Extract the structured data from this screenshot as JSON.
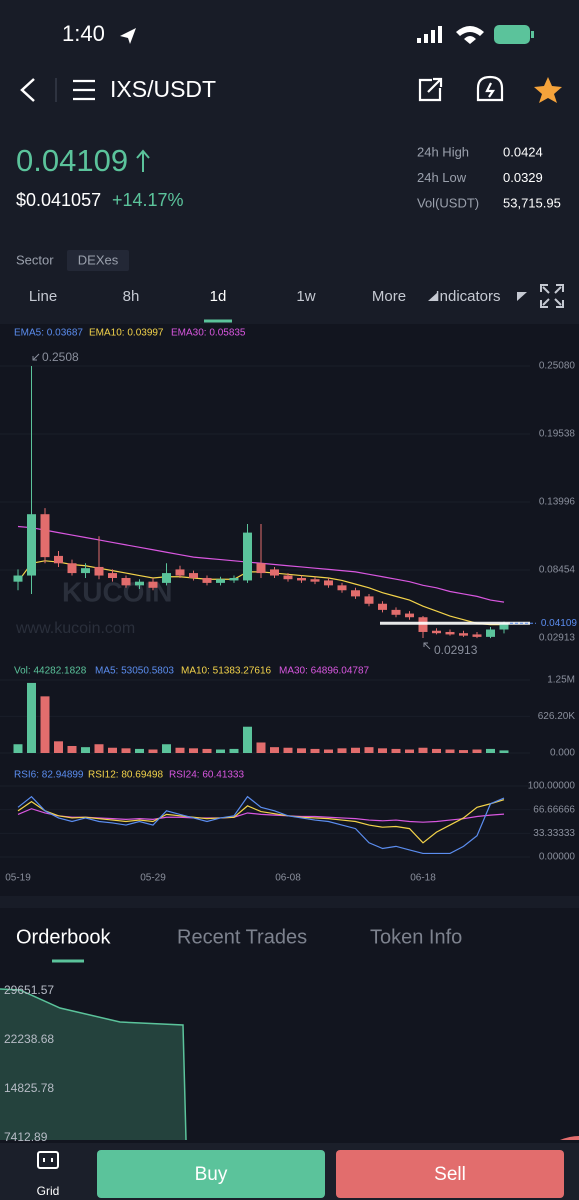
{
  "status": {
    "time": "1:40"
  },
  "header": {
    "pair": "IXS/USDT"
  },
  "ticker": {
    "price": "0.04109",
    "usd": "$0.041057",
    "change": "+14.17%",
    "stats": [
      {
        "label": "24h High",
        "value": "0.0424"
      },
      {
        "label": "24h Low",
        "value": "0.0329"
      },
      {
        "label": "Vol(USDT)",
        "value": "53,715.95"
      }
    ]
  },
  "sector": {
    "label": "Sector",
    "value": "DEXes"
  },
  "intervals": [
    "Line",
    "8h",
    "1d",
    "1w",
    "More"
  ],
  "active_interval": 2,
  "indicators": "Indicators",
  "chart_data": {
    "type": "candlestick",
    "legend": [
      "EMA5: 0.03687",
      "EMA10: 0.03997",
      "EMA30: 0.05835"
    ],
    "watermark": [
      "KUCOIN",
      "www.kucoin.com"
    ],
    "categories": [
      "05-19",
      null,
      null,
      null,
      null,
      null,
      null,
      null,
      null,
      null,
      "05-29",
      null,
      null,
      null,
      null,
      null,
      null,
      null,
      null,
      null,
      "06-08",
      null,
      null,
      null,
      null,
      null,
      null,
      null,
      null,
      null,
      "06-18",
      null,
      null,
      null,
      null,
      null,
      null
    ],
    "open": [
      0.075,
      0.08,
      0.13,
      0.096,
      0.09,
      0.082,
      0.087,
      0.082,
      0.078,
      0.072,
      0.075,
      0.074,
      0.085,
      0.082,
      0.078,
      0.074,
      0.076,
      0.076,
      0.09,
      0.085,
      0.08,
      0.078,
      0.077,
      0.076,
      0.072,
      0.068,
      0.063,
      0.057,
      0.052,
      0.049,
      0.046,
      0.035,
      0.034,
      0.033,
      0.032,
      0.03,
      0.036
    ],
    "high": [
      0.085,
      0.2508,
      0.135,
      0.1,
      0.093,
      0.09,
      0.112,
      0.085,
      0.08,
      0.077,
      0.078,
      0.09,
      0.088,
      0.084,
      0.08,
      0.079,
      0.08,
      0.122,
      0.122,
      0.087,
      0.082,
      0.08,
      0.079,
      0.078,
      0.074,
      0.07,
      0.065,
      0.059,
      0.054,
      0.051,
      0.047,
      0.037,
      0.036,
      0.035,
      0.034,
      0.038,
      0.0424
    ],
    "low": [
      0.068,
      0.065,
      0.09,
      0.087,
      0.08,
      0.078,
      0.077,
      0.075,
      0.07,
      0.069,
      0.068,
      0.072,
      0.078,
      0.076,
      0.072,
      0.072,
      0.074,
      0.074,
      0.078,
      0.078,
      0.075,
      0.074,
      0.073,
      0.07,
      0.066,
      0.061,
      0.055,
      0.05,
      0.046,
      0.044,
      0.02913,
      0.032,
      0.031,
      0.03,
      0.029,
      0.029,
      0.0329
    ],
    "close": [
      0.08,
      0.13,
      0.095,
      0.09,
      0.082,
      0.086,
      0.08,
      0.078,
      0.072,
      0.075,
      0.07,
      0.082,
      0.08,
      0.078,
      0.074,
      0.077,
      0.078,
      0.115,
      0.082,
      0.08,
      0.077,
      0.076,
      0.075,
      0.072,
      0.068,
      0.063,
      0.057,
      0.052,
      0.048,
      0.046,
      0.034,
      0.033,
      0.032,
      0.031,
      0.03,
      0.036,
      0.04109
    ],
    "ema10": [
      0.075,
      0.09,
      0.092,
      0.091,
      0.089,
      0.088,
      0.086,
      0.084,
      0.082,
      0.08,
      0.078,
      0.079,
      0.079,
      0.078,
      0.077,
      0.077,
      0.077,
      0.083,
      0.083,
      0.082,
      0.081,
      0.08,
      0.079,
      0.078,
      0.076,
      0.073,
      0.07,
      0.066,
      0.063,
      0.06,
      0.055,
      0.051,
      0.047,
      0.044,
      0.041,
      0.04,
      0.03997
    ],
    "ema30": [
      0.12,
      0.119,
      0.117,
      0.115,
      0.113,
      0.111,
      0.109,
      0.107,
      0.105,
      0.103,
      0.101,
      0.099,
      0.097,
      0.095,
      0.094,
      0.093,
      0.092,
      0.091,
      0.09,
      0.089,
      0.088,
      0.087,
      0.086,
      0.085,
      0.084,
      0.083,
      0.081,
      0.079,
      0.077,
      0.075,
      0.072,
      0.07,
      0.067,
      0.065,
      0.063,
      0.06,
      0.05835
    ],
    "ylim": [
      0.0193,
      0.272
    ],
    "yticks": [
      {
        "value": 0.2508,
        "label": "0.25080"
      },
      0.19538,
      0.13996,
      0.08454
    ],
    "up_color": "#5bc39b",
    "down_color": "#e26d6d",
    "ema10_color": "#f3d34a",
    "ema30_color": "#d957e0",
    "volume": {
      "legend": [
        "Vol: 44282.1828",
        "MA5: 53050.5803",
        "MA10: 51383.27616",
        "MA30: 64896.04787"
      ],
      "values": [
        150000,
        1200000,
        970000,
        200000,
        120000,
        100000,
        150000,
        90000,
        80000,
        70000,
        60000,
        150000,
        90000,
        80000,
        70000,
        60000,
        70000,
        450000,
        180000,
        100000,
        90000,
        80000,
        70000,
        60000,
        80000,
        90000,
        100000,
        80000,
        70000,
        60000,
        90000,
        70000,
        60000,
        50000,
        60000,
        70000,
        44282.1828
      ],
      "ylim": [
        0,
        1250000
      ],
      "yticks": [
        {
          "value": 1250000,
          "label": "1.25M"
        },
        {
          "value": 626200,
          "label": "626.20K"
        },
        {
          "value": 0,
          "label": "0.000"
        }
      ]
    },
    "rsi": {
      "legend": [
        "RSI6: 82.94899",
        "RSI12: 80.69498",
        "RSI24: 60.41333"
      ],
      "rsi6": [
        70,
        85,
        65,
        55,
        50,
        55,
        50,
        48,
        45,
        50,
        45,
        65,
        60,
        55,
        50,
        55,
        58,
        85,
        70,
        65,
        58,
        55,
        52,
        50,
        45,
        40,
        20,
        12,
        15,
        10,
        5,
        5,
        5,
        15,
        30,
        75,
        82.94899
      ],
      "rsi12": [
        65,
        78,
        65,
        58,
        55,
        56,
        54,
        52,
        50,
        52,
        50,
        60,
        58,
        56,
        54,
        55,
        56,
        72,
        64,
        61,
        58,
        56,
        55,
        54,
        52,
        50,
        45,
        42,
        43,
        40,
        20,
        35,
        45,
        55,
        70,
        75,
        80.69498
      ],
      "rsi24": [
        60,
        68,
        62,
        58,
        56,
        56,
        55,
        54,
        53,
        54,
        53,
        56,
        56,
        55,
        55,
        55,
        56,
        62,
        60,
        59,
        58,
        57,
        57,
        56,
        55,
        54,
        52,
        51,
        52,
        50,
        49,
        50,
        52,
        54,
        57,
        59,
        60.41333
      ],
      "ylim": [
        0,
        100
      ],
      "yticks": [
        {
          "value": 100,
          "label": "100.00000"
        },
        {
          "value": 66.66666,
          "label": "66.66666"
        },
        {
          "value": 33.33333,
          "label": "33.33333"
        },
        {
          "value": 0,
          "label": "0.00000"
        }
      ],
      "colors": [
        "#5b8def",
        "#f3d34a",
        "#d957e0"
      ]
    }
  },
  "tabs": [
    "Orderbook",
    "Recent Trades",
    "Token Info"
  ],
  "orderbook": {
    "ticks": [
      "29651.57",
      "22238.68",
      "14825.78",
      "7412.89"
    ]
  },
  "actions": {
    "grid": "Grid",
    "buy": "Buy",
    "sell": "Sell"
  }
}
